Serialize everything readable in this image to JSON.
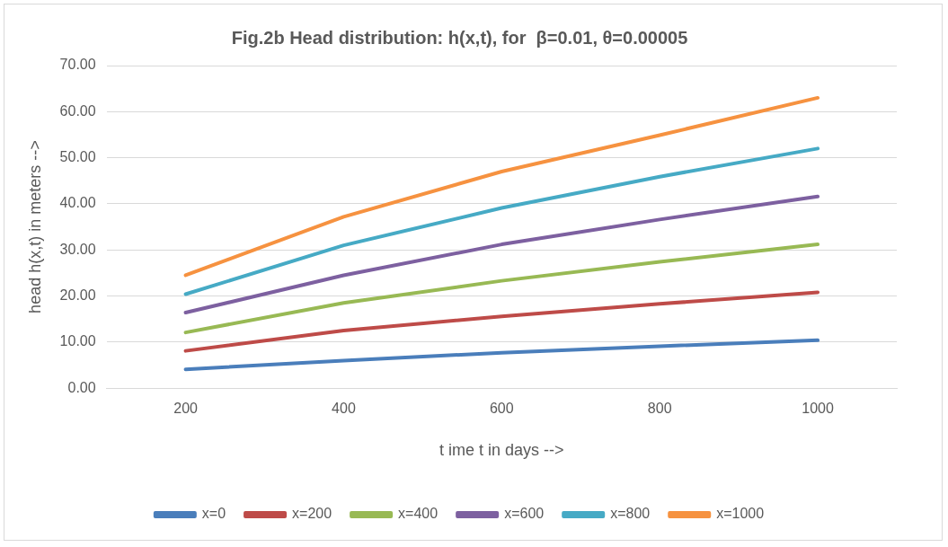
{
  "chart_data": {
    "type": "line",
    "title": "Fig.2b Head distribution: h(x,t), for  β=0.01, θ=0.00005",
    "xlabel": "t ime t in days -->",
    "ylabel": "head h(x,t) in meters -->",
    "categories": [
      "200",
      "400",
      "600",
      "800",
      "1000"
    ],
    "series": [
      {
        "name": "x=0",
        "color": "#4a7ebb",
        "values": [
          4.1,
          6.0,
          7.7,
          9.1,
          10.4
        ]
      },
      {
        "name": "x=200",
        "color": "#be4b48",
        "values": [
          8.1,
          12.5,
          15.6,
          18.3,
          20.8
        ]
      },
      {
        "name": "x=400",
        "color": "#98b954",
        "values": [
          12.1,
          18.5,
          23.3,
          27.4,
          31.2
        ]
      },
      {
        "name": "x=600",
        "color": "#7d60a0",
        "values": [
          16.4,
          24.5,
          31.2,
          36.6,
          41.6
        ]
      },
      {
        "name": "x=800",
        "color": "#46aac5",
        "values": [
          20.4,
          31.0,
          39.1,
          45.9,
          52.0
        ]
      },
      {
        "name": "x=1000",
        "color": "#f69240",
        "values": [
          24.5,
          37.2,
          47.0,
          54.9,
          63.0
        ]
      }
    ],
    "ylim": [
      0,
      70
    ],
    "yticks": [
      {
        "value": 0,
        "label": "0.00"
      },
      {
        "value": 10,
        "label": "10.00"
      },
      {
        "value": 20,
        "label": "20.00"
      },
      {
        "value": 30,
        "label": "30.00"
      },
      {
        "value": 40,
        "label": "40.00"
      },
      {
        "value": 50,
        "label": "50.00"
      },
      {
        "value": 60,
        "label": "60.00"
      },
      {
        "value": 70,
        "label": "70.00"
      }
    ],
    "grid": "y",
    "legend": "bottom",
    "marker": "none",
    "line_style": "solid"
  }
}
